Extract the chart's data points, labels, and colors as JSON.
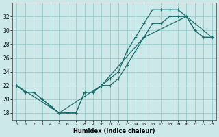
{
  "xlabel": "Humidex (Indice chaleur)",
  "xlim": [
    -0.5,
    23.5
  ],
  "ylim": [
    17,
    34
  ],
  "yticks": [
    18,
    20,
    22,
    24,
    26,
    28,
    30,
    32
  ],
  "xticks": [
    0,
    1,
    2,
    3,
    4,
    5,
    6,
    7,
    8,
    9,
    10,
    11,
    12,
    13,
    14,
    15,
    16,
    17,
    18,
    19,
    20,
    21,
    22,
    23
  ],
  "background_color": "#cce8e8",
  "grid_color": "#99cccc",
  "line_color": "#1a6b6b",
  "line1_x": [
    0,
    1,
    2,
    3,
    4,
    5,
    6,
    7,
    8,
    9,
    10,
    11,
    12,
    13,
    14,
    15,
    16,
    17,
    18,
    19,
    20,
    21,
    22,
    23
  ],
  "line1_y": [
    22,
    21,
    21,
    20,
    19,
    18,
    18,
    18,
    21,
    21,
    22,
    22,
    23,
    25,
    27,
    29,
    31,
    31,
    32,
    32,
    32,
    30,
    29,
    29
  ],
  "line2_x": [
    0,
    1,
    2,
    3,
    4,
    5,
    6,
    7,
    8,
    9,
    10,
    11,
    12,
    13,
    14,
    15,
    16,
    17,
    18,
    19,
    20,
    21,
    22,
    23
  ],
  "line2_y": [
    22,
    21,
    21,
    20,
    19,
    18,
    18,
    18,
    21,
    21,
    22,
    23,
    24,
    27,
    29,
    31,
    33,
    33,
    33,
    33,
    32,
    30,
    29,
    29
  ],
  "line3_x": [
    0,
    5,
    10,
    15,
    20,
    23
  ],
  "line3_y": [
    22,
    18,
    22,
    29,
    32,
    29
  ]
}
